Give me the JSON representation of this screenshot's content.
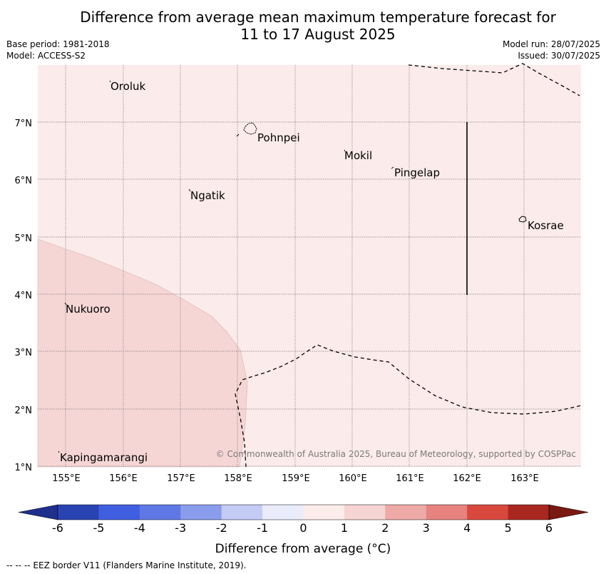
{
  "title": {
    "line1": "Difference from average mean maximum temperature forecast for",
    "line2": "11 to 17 August 2025"
  },
  "meta_left": {
    "base_period": "Base period: 1981-2018",
    "model": "Model: ACCESS-S2"
  },
  "meta_right": {
    "model_run": "Model run: 28/07/2025",
    "issued": "Issued: 30/07/2025"
  },
  "map": {
    "background_anomaly_range": "0 to 1",
    "background_color": "#fbebea",
    "overlay_anomaly_range": "1 to 2",
    "overlay_color": "#f5d6d5",
    "lat_labels": [
      "7°N",
      "6°N",
      "5°N",
      "4°N",
      "3°N",
      "2°N",
      "1°N"
    ],
    "lon_labels": [
      "155°E",
      "156°E",
      "157°E",
      "158°E",
      "159°E",
      "160°E",
      "161°E",
      "162°E",
      "163°E"
    ],
    "places": [
      {
        "name": "Oroluk"
      },
      {
        "name": "Pohnpei"
      },
      {
        "name": "Mokil"
      },
      {
        "name": "Pingelap"
      },
      {
        "name": "Ngatik"
      },
      {
        "name": "Kosrae"
      },
      {
        "name": "Nukuoro"
      },
      {
        "name": "Kapingamarangi"
      }
    ],
    "copyright": "© Commonwealth of Australia 2025, Bureau of Meteorology, supported by COSPPac"
  },
  "colorbar": {
    "ticks": [
      "-6",
      "-5",
      "-4",
      "-3",
      "-2",
      "-1",
      "0",
      "1",
      "2",
      "3",
      "4",
      "5",
      "6"
    ],
    "colors": [
      "#1e2f8c",
      "#2a43b3",
      "#3f5ee0",
      "#5f78e6",
      "#8a9cec",
      "#c4cbf5",
      "#ebecfb",
      "#fcecea",
      "#f6d4d3",
      "#eeaaa7",
      "#e6837e",
      "#d9483d",
      "#a8271f",
      "#7a1812"
    ],
    "label": "Difference from average (°C)"
  },
  "footnote": "--  --  -- EEZ border V11 (Flanders Marine Institute, 2019)."
}
